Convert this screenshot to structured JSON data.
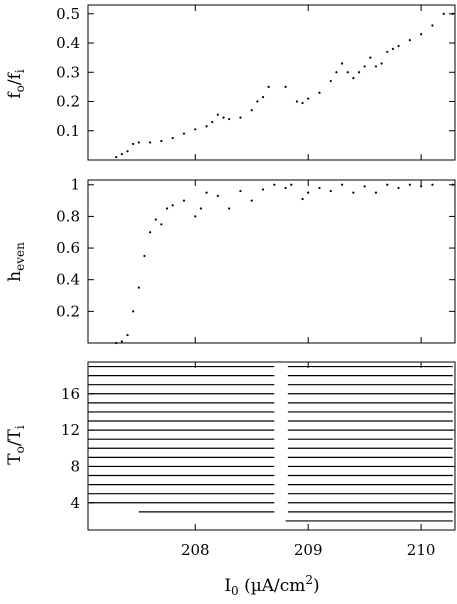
{
  "chart_data": [
    {
      "type": "scatter",
      "ylabel_main": "f",
      "ylabel_sub_num": "o",
      "ylabel_div": "/f",
      "ylabel_sub_den": "i",
      "xlim": [
        207.05,
        210.3
      ],
      "ylim": [
        0.0,
        0.53
      ],
      "yticks": [
        0.1,
        0.2,
        0.3,
        0.4,
        0.5
      ],
      "ytick_labels": [
        "0.1",
        "0.2",
        "0.3",
        "0.4",
        "0.5"
      ],
      "xticks": [
        208,
        209,
        210
      ],
      "series": [
        {
          "points": [
            [
              207.3,
              0.01
            ],
            [
              207.35,
              0.02
            ],
            [
              207.4,
              0.03
            ],
            [
              207.45,
              0.055
            ],
            [
              207.5,
              0.06
            ],
            [
              207.6,
              0.06
            ],
            [
              207.7,
              0.065
            ],
            [
              207.8,
              0.075
            ],
            [
              207.9,
              0.09
            ],
            [
              208.0,
              0.105
            ],
            [
              208.1,
              0.115
            ],
            [
              208.15,
              0.13
            ],
            [
              208.2,
              0.155
            ],
            [
              208.25,
              0.145
            ],
            [
              208.3,
              0.14
            ],
            [
              208.4,
              0.145
            ],
            [
              208.5,
              0.17
            ],
            [
              208.55,
              0.2
            ],
            [
              208.6,
              0.215
            ],
            [
              208.65,
              0.25
            ],
            [
              208.8,
              0.25
            ],
            [
              208.9,
              0.2
            ],
            [
              208.95,
              0.195
            ],
            [
              209.0,
              0.21
            ],
            [
              209.1,
              0.23
            ],
            [
              209.2,
              0.27
            ],
            [
              209.25,
              0.3
            ],
            [
              209.3,
              0.33
            ],
            [
              209.35,
              0.3
            ],
            [
              209.4,
              0.28
            ],
            [
              209.45,
              0.3
            ],
            [
              209.5,
              0.32
            ],
            [
              209.55,
              0.35
            ],
            [
              209.6,
              0.32
            ],
            [
              209.65,
              0.33
            ],
            [
              209.7,
              0.37
            ],
            [
              209.75,
              0.38
            ],
            [
              209.8,
              0.39
            ],
            [
              209.9,
              0.41
            ],
            [
              210.0,
              0.43
            ],
            [
              210.1,
              0.46
            ],
            [
              210.2,
              0.5
            ],
            [
              210.28,
              0.5
            ]
          ]
        }
      ]
    },
    {
      "type": "scatter",
      "ylabel_main": "h",
      "ylabel_sub": "even",
      "xlim": [
        207.05,
        210.3
      ],
      "ylim": [
        0.0,
        1.03
      ],
      "yticks": [
        0.2,
        0.4,
        0.6,
        0.8,
        1.0
      ],
      "ytick_labels": [
        "0.2",
        "0.4",
        "0.6",
        "0.8",
        "1"
      ],
      "xticks": [
        208,
        209,
        210
      ],
      "series": [
        {
          "points": [
            [
              207.3,
              0.0
            ],
            [
              207.35,
              0.01
            ],
            [
              207.4,
              0.05
            ],
            [
              207.45,
              0.2
            ],
            [
              207.5,
              0.35
            ],
            [
              207.55,
              0.55
            ],
            [
              207.6,
              0.7
            ],
            [
              207.65,
              0.78
            ],
            [
              207.7,
              0.75
            ],
            [
              207.75,
              0.85
            ],
            [
              207.8,
              0.87
            ],
            [
              207.9,
              0.9
            ],
            [
              208.0,
              0.8
            ],
            [
              208.05,
              0.85
            ],
            [
              208.1,
              0.95
            ],
            [
              208.2,
              0.93
            ],
            [
              208.3,
              0.85
            ],
            [
              208.4,
              0.96
            ],
            [
              208.5,
              0.9
            ],
            [
              208.6,
              0.97
            ],
            [
              208.7,
              1.0
            ],
            [
              208.8,
              0.98
            ],
            [
              208.85,
              1.0
            ],
            [
              208.95,
              0.91
            ],
            [
              209.0,
              0.95
            ],
            [
              209.1,
              0.98
            ],
            [
              209.2,
              0.96
            ],
            [
              209.3,
              1.0
            ],
            [
              209.4,
              0.95
            ],
            [
              209.5,
              0.99
            ],
            [
              209.6,
              0.95
            ],
            [
              209.7,
              1.0
            ],
            [
              209.8,
              0.98
            ],
            [
              209.9,
              1.0
            ],
            [
              210.0,
              0.99
            ],
            [
              210.1,
              1.0
            ],
            [
              210.28,
              1.0
            ]
          ]
        }
      ]
    },
    {
      "type": "scatter",
      "ylabel_main": "T",
      "ylabel_sub_num": "o",
      "ylabel_div": "/T",
      "ylabel_sub_den": "i",
      "xlabel_main": "I",
      "xlabel_sub": "0",
      "xlabel_rest": " (µA/cm",
      "xlabel_sup": "2",
      "xlabel_end": ")",
      "xlim": [
        207.05,
        210.3
      ],
      "ylim": [
        1.0,
        19.5
      ],
      "yticks": [
        4,
        8,
        12,
        16
      ],
      "ytick_labels": [
        "4",
        "8",
        "12",
        "16"
      ],
      "xticks": [
        208,
        209,
        210
      ],
      "xtick_labels": [
        "208",
        "209",
        "210"
      ],
      "bands": [
        {
          "level": 2,
          "x_start": 208.8,
          "x_end": 210.28
        },
        {
          "level": 3,
          "x_start": 207.5,
          "x_end": 210.28
        },
        {
          "level": 4,
          "x_start": 207.05,
          "x_end": 210.28
        },
        {
          "level": 5,
          "x_start": 207.05,
          "x_end": 210.28
        },
        {
          "level": 6,
          "x_start": 207.05,
          "x_end": 210.28
        },
        {
          "level": 7,
          "x_start": 207.05,
          "x_end": 210.28
        },
        {
          "level": 8,
          "x_start": 207.05,
          "x_end": 210.28
        },
        {
          "level": 9,
          "x_start": 207.05,
          "x_end": 210.28
        },
        {
          "level": 10,
          "x_start": 207.05,
          "x_end": 210.28
        },
        {
          "level": 11,
          "x_start": 207.05,
          "x_end": 210.28
        },
        {
          "level": 12,
          "x_start": 207.05,
          "x_end": 210.28
        },
        {
          "level": 13,
          "x_start": 207.05,
          "x_end": 210.28
        },
        {
          "level": 14,
          "x_start": 207.05,
          "x_end": 210.28
        },
        {
          "level": 15,
          "x_start": 207.05,
          "x_end": 210.28
        },
        {
          "level": 16,
          "x_start": 207.05,
          "x_end": 210.28
        },
        {
          "level": 17,
          "x_start": 207.05,
          "x_end": 210.28
        },
        {
          "level": 18,
          "x_start": 207.05,
          "x_end": 210.28
        },
        {
          "level": 19,
          "x_start": 207.05,
          "x_end": 210.28
        }
      ],
      "gap": [
        208.7,
        208.82
      ]
    }
  ]
}
